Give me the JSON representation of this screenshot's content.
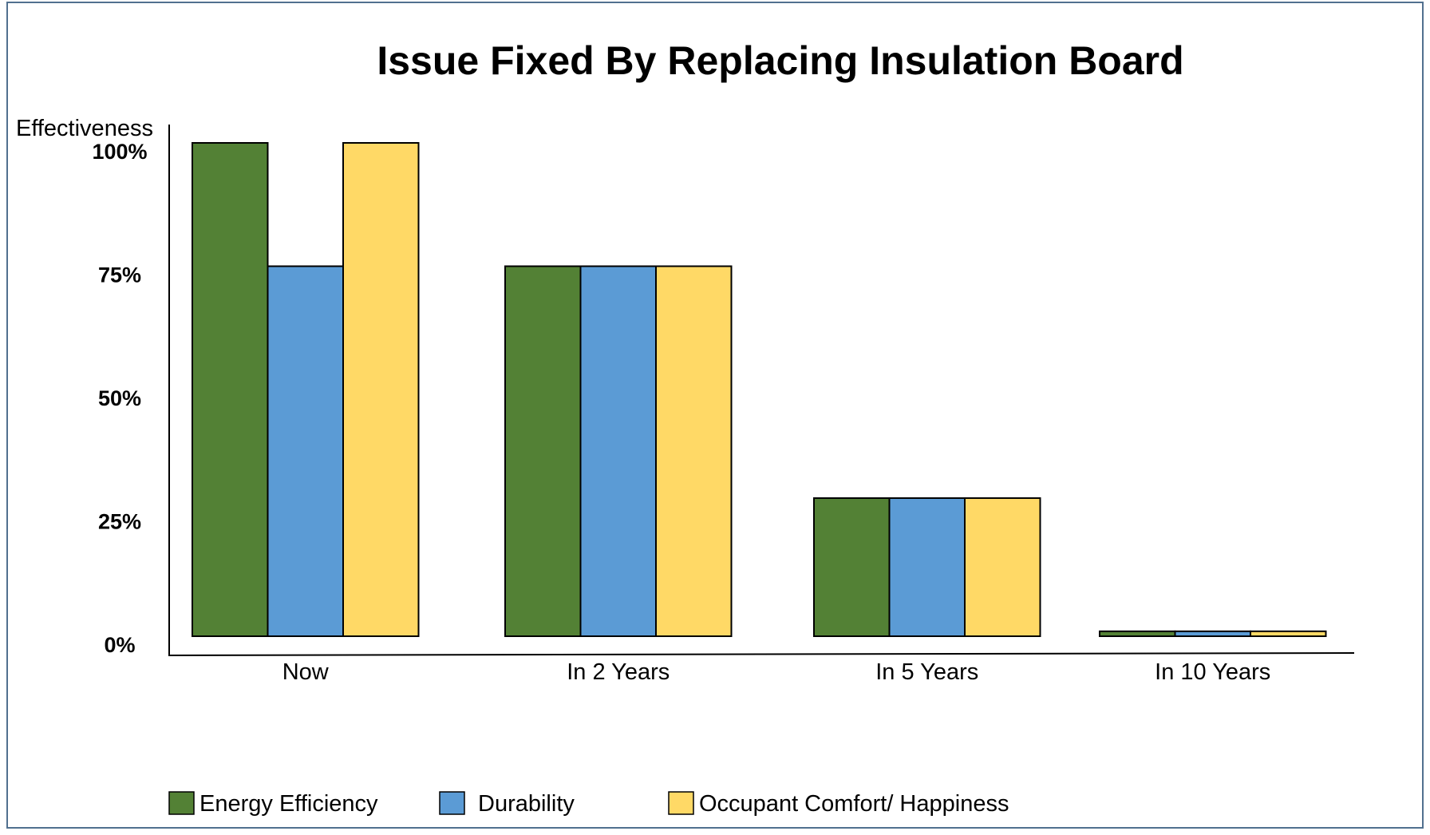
{
  "chart_data": {
    "type": "bar",
    "title": "Issue Fixed By Replacing Insulation Board",
    "xlabel": "",
    "ylabel": "Effectiveness",
    "categories": [
      "Now",
      "In 2 Years",
      "In 5 Years",
      "In 10 Years"
    ],
    "series": [
      {
        "name": "Energy Efficiency",
        "color": "#538135",
        "values": [
          100,
          75,
          28,
          1
        ]
      },
      {
        "name": "Durability",
        "color": "#5b9bd5",
        "values": [
          75,
          75,
          28,
          1
        ]
      },
      {
        "name": "Occupant Comfort/ Happiness",
        "color": "#ffd966",
        "values": [
          100,
          75,
          28,
          1
        ]
      }
    ],
    "yticks": [
      {
        "value": 100,
        "label": "100%"
      },
      {
        "value": 75,
        "label": "75%"
      },
      {
        "value": 50,
        "label": "50%"
      },
      {
        "value": 25,
        "label": "25%"
      },
      {
        "value": 0,
        "label": "0%"
      }
    ],
    "ylim": [
      0,
      100
    ],
    "grid": false,
    "legend_position": "bottom-left"
  }
}
